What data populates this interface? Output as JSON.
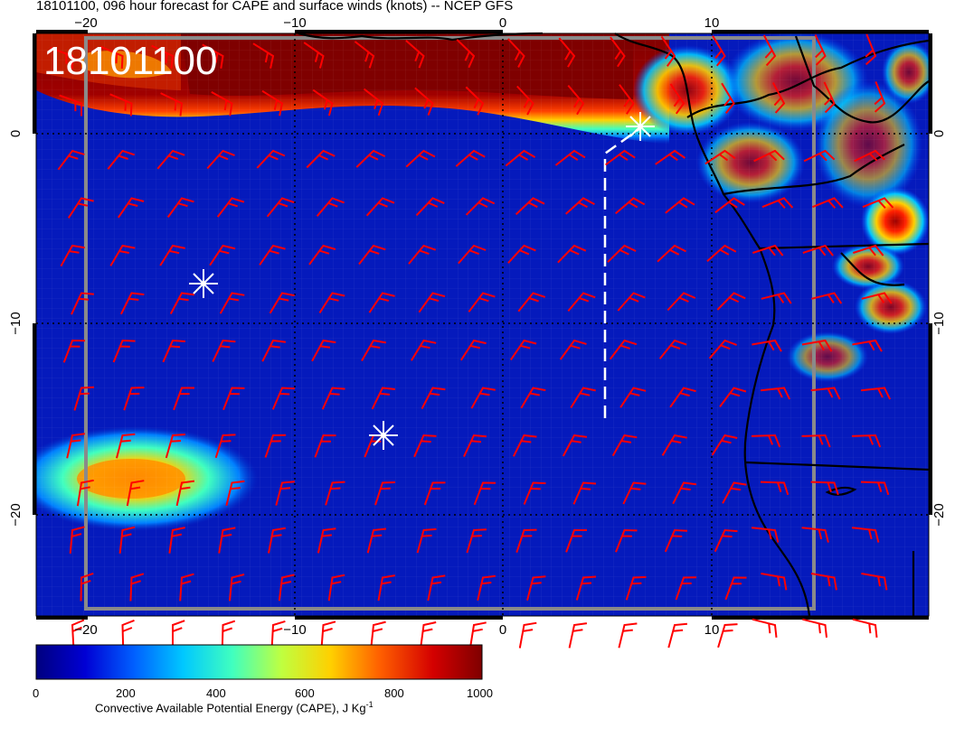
{
  "header": {
    "title": "18101100, 096 hour forecast for CAPE and surface winds (knots) -- NCEP GFS"
  },
  "map": {
    "valid_stamp": "18101100",
    "x_ticks_bottom": [
      "−20",
      "−10",
      "0",
      "10"
    ],
    "x_ticks_top": [
      "−20",
      "−10",
      "0",
      "10"
    ],
    "y_ticks_left": [
      "0",
      "−10",
      "−20"
    ],
    "y_ticks_right": [
      "0",
      "−10",
      "−20"
    ],
    "markers": [
      {
        "name": "star-marker-gulf-of-guinea",
        "lon": 6.8,
        "lat": 0.3
      },
      {
        "name": "star-marker-west",
        "lon": -14.6,
        "lat": -7.9
      },
      {
        "name": "star-marker-south",
        "lon": -5.9,
        "lat": -15.8
      }
    ],
    "track_line_color": "#ffffff",
    "wind_barb_color": "#ff0000",
    "coastline_color": "#000000"
  },
  "colorbar": {
    "title": "Convective Available Potential Energy (CAPE), J Kg",
    "title_superscript": "-1",
    "ticks": [
      "0",
      "200",
      "400",
      "600",
      "800",
      "1000"
    ],
    "range": [
      0,
      1000
    ],
    "colors": [
      "#00007f",
      "#0000d4",
      "#0060ff",
      "#00c8ff",
      "#40ffbf",
      "#bfff40",
      "#ffd000",
      "#ff6000",
      "#d40000",
      "#7f0000"
    ]
  }
}
